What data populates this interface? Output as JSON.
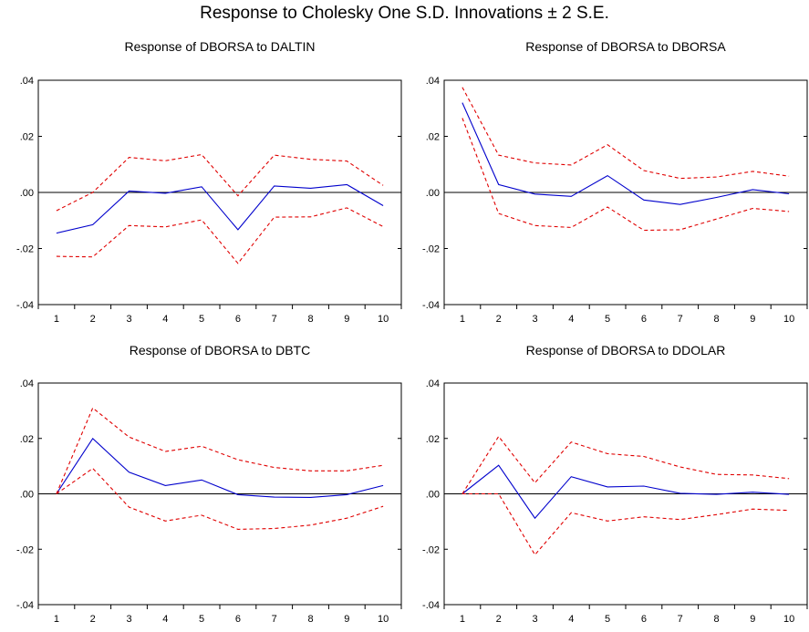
{
  "title": "Response to Cholesky One S.D. Innovations ± 2 S.E.",
  "colors": {
    "response": "#0000cc",
    "band": "#e00000",
    "axis": "#000000"
  },
  "chart_data": [
    {
      "type": "line",
      "title": "Response of DBORSA to DALTIN",
      "x": [
        1,
        2,
        3,
        4,
        5,
        6,
        7,
        8,
        9,
        10
      ],
      "ylim": [
        -0.04,
        0.04
      ],
      "yticks": [
        ".04",
        ".02",
        ".00",
        "-.02",
        "-.04"
      ],
      "series": [
        {
          "role": "response",
          "values": [
            -0.0145,
            -0.0115,
            0.0005,
            -0.0003,
            0.002,
            -0.0133,
            0.0023,
            0.0015,
            0.0028,
            -0.0047
          ]
        },
        {
          "role": "upper",
          "values": [
            -0.0065,
            0.0,
            0.0125,
            0.0113,
            0.0135,
            -0.0012,
            0.0133,
            0.0118,
            0.0112,
            0.0025
          ]
        },
        {
          "role": "lower",
          "values": [
            -0.0228,
            -0.023,
            -0.0118,
            -0.0123,
            -0.0098,
            -0.0253,
            -0.0088,
            -0.0087,
            -0.0055,
            -0.0122
          ]
        }
      ]
    },
    {
      "type": "line",
      "title": "Response of DBORSA to DBORSA",
      "x": [
        1,
        2,
        3,
        4,
        5,
        6,
        7,
        8,
        9,
        10
      ],
      "ylim": [
        -0.04,
        0.04
      ],
      "yticks": [
        ".04",
        ".02",
        ".00",
        "-.02",
        "-.04"
      ],
      "series": [
        {
          "role": "response",
          "values": [
            0.032,
            0.0028,
            -0.0006,
            -0.0014,
            0.006,
            -0.0027,
            -0.0043,
            -0.0018,
            0.001,
            -0.0005
          ]
        },
        {
          "role": "upper",
          "values": [
            0.0375,
            0.0133,
            0.0105,
            0.0098,
            0.017,
            0.0078,
            0.005,
            0.0055,
            0.0075,
            0.0058
          ]
        },
        {
          "role": "lower",
          "values": [
            0.0265,
            -0.0075,
            -0.0118,
            -0.0125,
            -0.0052,
            -0.0135,
            -0.0133,
            -0.0095,
            -0.0057,
            -0.0068
          ]
        }
      ]
    },
    {
      "type": "line",
      "title": "Response of DBORSA to DBTC",
      "x": [
        1,
        2,
        3,
        4,
        5,
        6,
        7,
        8,
        9,
        10
      ],
      "ylim": [
        -0.04,
        0.04
      ],
      "yticks": [
        ".04",
        ".02",
        ".00",
        "-.02",
        "-.04"
      ],
      "series": [
        {
          "role": "response",
          "values": [
            0.0,
            0.02,
            0.0078,
            0.003,
            0.005,
            -0.0003,
            -0.0012,
            -0.0013,
            -0.0003,
            0.003
          ]
        },
        {
          "role": "upper",
          "values": [
            0.0,
            0.031,
            0.0205,
            0.0153,
            0.0172,
            0.0123,
            0.0095,
            0.0083,
            0.0083,
            0.0103
          ]
        },
        {
          "role": "lower",
          "values": [
            0.0,
            0.0092,
            -0.0048,
            -0.0098,
            -0.0077,
            -0.0128,
            -0.0125,
            -0.0113,
            -0.0088,
            -0.0045
          ]
        }
      ]
    },
    {
      "type": "line",
      "title": "Response of DBORSA to DDOLAR",
      "x": [
        1,
        2,
        3,
        4,
        5,
        6,
        7,
        8,
        9,
        10
      ],
      "ylim": [
        -0.04,
        0.04
      ],
      "yticks": [
        ".04",
        ".02",
        ".00",
        "-.02",
        "-.04"
      ],
      "series": [
        {
          "role": "response",
          "values": [
            0.0,
            0.0103,
            -0.0088,
            0.0062,
            0.0025,
            0.0028,
            0.0002,
            -0.0002,
            0.0006,
            -0.0002
          ]
        },
        {
          "role": "upper",
          "values": [
            0.0,
            0.0207,
            0.004,
            0.0187,
            0.0145,
            0.0135,
            0.0097,
            0.007,
            0.0068,
            0.0055
          ]
        },
        {
          "role": "lower",
          "values": [
            0.0,
            0.0,
            -0.022,
            -0.0068,
            -0.0098,
            -0.0083,
            -0.0093,
            -0.0075,
            -0.0055,
            -0.006
          ]
        }
      ]
    }
  ]
}
